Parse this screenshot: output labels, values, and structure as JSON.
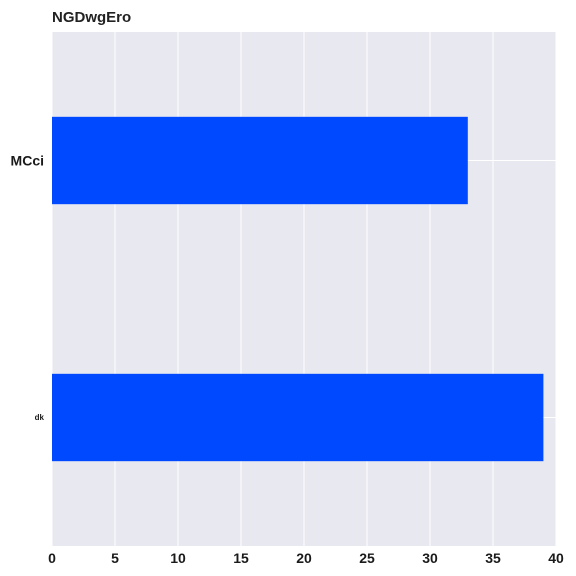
{
  "chart_data": {
    "type": "bar",
    "orientation": "horizontal",
    "title": "NGDwgEro",
    "xlabel": "",
    "ylabel": "",
    "categories": [
      "MCci",
      "dk"
    ],
    "values": [
      33,
      39
    ],
    "xlim": [
      0,
      40
    ],
    "xticks": [
      0,
      5,
      10,
      15,
      20,
      25,
      30,
      35,
      40
    ],
    "grid": true,
    "legend": "none",
    "colors": {
      "bar": "#0049ff",
      "plot_background": "#e8e8f1",
      "grid": "#ffffff",
      "text": "#1a1a1a"
    }
  }
}
